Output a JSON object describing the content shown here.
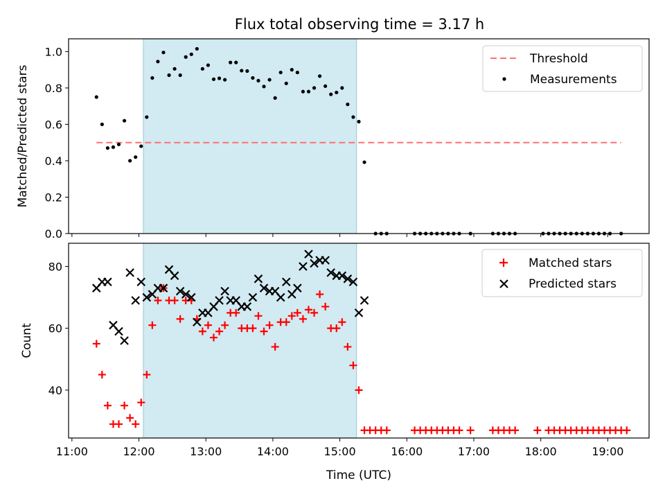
{
  "chart_data": [
    {
      "type": "scatter",
      "title": "Flux total observing time = 3.17 h",
      "xlabel": "",
      "ylabel": "Matched/Predicted stars",
      "xlim": [
        "10:57",
        "19:37"
      ],
      "ylim": [
        0,
        1.07
      ],
      "yticks": [
        "0.0",
        "0.2",
        "0.4",
        "0.6",
        "0.8",
        "1.0"
      ],
      "shaded_interval": [
        "12:04",
        "15:15"
      ],
      "legend": {
        "position": "upper right",
        "entries": [
          "Threshold",
          "Measurements"
        ]
      },
      "threshold": {
        "name": "Threshold",
        "x": [
          "11:22",
          "19:12"
        ],
        "y": 0.5,
        "color": "#ff7070",
        "style": "dashed"
      },
      "series": [
        {
          "name": "Measurements",
          "color": "#000000",
          "marker": "dot",
          "points": [
            [
              "11:22",
              0.75
            ],
            [
              "11:27",
              0.6
            ],
            [
              "11:32",
              0.47
            ],
            [
              "11:37",
              0.475
            ],
            [
              "11:42",
              0.49
            ],
            [
              "11:47",
              0.62
            ],
            [
              "11:52",
              0.4
            ],
            [
              "11:57",
              0.42
            ],
            [
              "12:02",
              0.48
            ],
            [
              "12:07",
              0.64
            ],
            [
              "12:12",
              0.855
            ],
            [
              "12:17",
              0.945
            ],
            [
              "12:22",
              0.995
            ],
            [
              "12:27",
              0.87
            ],
            [
              "12:32",
              0.905
            ],
            [
              "12:37",
              0.87
            ],
            [
              "12:42",
              0.97
            ],
            [
              "12:47",
              0.985
            ],
            [
              "12:52",
              1.015
            ],
            [
              "12:57",
              0.905
            ],
            [
              "13:02",
              0.925
            ],
            [
              "13:07",
              0.848
            ],
            [
              "13:12",
              0.853
            ],
            [
              "13:17",
              0.845
            ],
            [
              "13:22",
              0.94
            ],
            [
              "13:27",
              0.94
            ],
            [
              "13:32",
              0.895
            ],
            [
              "13:37",
              0.893
            ],
            [
              "13:42",
              0.855
            ],
            [
              "13:47",
              0.84
            ],
            [
              "13:52",
              0.808
            ],
            [
              "13:57",
              0.845
            ],
            [
              "14:02",
              0.745
            ],
            [
              "14:07",
              0.885
            ],
            [
              "14:12",
              0.825
            ],
            [
              "14:17",
              0.9
            ],
            [
              "14:22",
              0.885
            ],
            [
              "14:27",
              0.78
            ],
            [
              "14:32",
              0.78
            ],
            [
              "14:37",
              0.8
            ],
            [
              "14:42",
              0.865
            ],
            [
              "14:47",
              0.81
            ],
            [
              "14:52",
              0.765
            ],
            [
              "14:57",
              0.775
            ],
            [
              "15:02",
              0.8
            ],
            [
              "15:07",
              0.71
            ],
            [
              "15:12",
              0.64
            ],
            [
              "15:17",
              0.615
            ],
            [
              "15:22",
              0.392
            ],
            [
              "15:32",
              0.0
            ],
            [
              "15:37",
              0.0
            ],
            [
              "15:42",
              0.0
            ],
            [
              "16:07",
              0.0
            ],
            [
              "16:12",
              0.0
            ],
            [
              "16:17",
              0.0
            ],
            [
              "16:22",
              0.0
            ],
            [
              "16:27",
              0.0
            ],
            [
              "16:32",
              0.0
            ],
            [
              "16:37",
              0.0
            ],
            [
              "16:42",
              0.0
            ],
            [
              "16:47",
              0.0
            ],
            [
              "16:57",
              0.0
            ],
            [
              "17:17",
              0.0
            ],
            [
              "17:22",
              0.0
            ],
            [
              "17:27",
              0.0
            ],
            [
              "17:32",
              0.0
            ],
            [
              "17:37",
              0.0
            ],
            [
              "18:02",
              0.0
            ],
            [
              "18:07",
              0.0
            ],
            [
              "18:12",
              0.0
            ],
            [
              "18:17",
              0.0
            ],
            [
              "18:22",
              0.0
            ],
            [
              "18:27",
              0.0
            ],
            [
              "18:32",
              0.0
            ],
            [
              "18:37",
              0.0
            ],
            [
              "18:42",
              0.0
            ],
            [
              "18:47",
              0.0
            ],
            [
              "18:52",
              0.0
            ],
            [
              "18:57",
              0.0
            ],
            [
              "19:02",
              0.0
            ],
            [
              "19:12",
              0.0
            ]
          ]
        }
      ]
    },
    {
      "type": "scatter",
      "title": "",
      "xlabel": "Time (UTC)",
      "ylabel": "Count",
      "xlim": [
        "10:57",
        "19:37"
      ],
      "ylim": [
        24.5,
        87.5
      ],
      "xticks": [
        "11:00",
        "12:00",
        "13:00",
        "14:00",
        "15:00",
        "16:00",
        "17:00",
        "18:00",
        "19:00"
      ],
      "yticks": [
        "40",
        "60",
        "80"
      ],
      "shaded_interval": [
        "12:04",
        "15:15"
      ],
      "legend": {
        "position": "upper right",
        "entries": [
          "Matched stars",
          "Predicted stars"
        ]
      },
      "series": [
        {
          "name": "Matched stars",
          "color": "#ff0000",
          "marker": "plus",
          "points": [
            [
              "11:22",
              55
            ],
            [
              "11:27",
              45
            ],
            [
              "11:32",
              35
            ],
            [
              "11:37",
              29
            ],
            [
              "11:42",
              29
            ],
            [
              "11:47",
              35
            ],
            [
              "11:52",
              31
            ],
            [
              "11:57",
              29
            ],
            [
              "12:02",
              36
            ],
            [
              "12:07",
              45
            ],
            [
              "12:12",
              61
            ],
            [
              "12:17",
              69
            ],
            [
              "12:22",
              73
            ],
            [
              "12:27",
              69
            ],
            [
              "12:32",
              69
            ],
            [
              "12:37",
              63
            ],
            [
              "12:42",
              69
            ],
            [
              "12:47",
              69
            ],
            [
              "12:52",
              63
            ],
            [
              "12:57",
              59
            ],
            [
              "13:02",
              61
            ],
            [
              "13:07",
              57
            ],
            [
              "13:12",
              59
            ],
            [
              "13:17",
              61
            ],
            [
              "13:22",
              65
            ],
            [
              "13:27",
              65
            ],
            [
              "13:32",
              60
            ],
            [
              "13:37",
              60
            ],
            [
              "13:42",
              60
            ],
            [
              "13:47",
              64
            ],
            [
              "13:52",
              59
            ],
            [
              "13:57",
              61
            ],
            [
              "14:02",
              54
            ],
            [
              "14:07",
              62
            ],
            [
              "14:12",
              62
            ],
            [
              "14:17",
              64
            ],
            [
              "14:22",
              65
            ],
            [
              "14:27",
              63
            ],
            [
              "14:32",
              66
            ],
            [
              "14:37",
              65
            ],
            [
              "14:42",
              71
            ],
            [
              "14:47",
              67
            ],
            [
              "14:52",
              60
            ],
            [
              "14:57",
              60
            ],
            [
              "15:02",
              62
            ],
            [
              "15:07",
              54
            ],
            [
              "15:12",
              48
            ],
            [
              "15:17",
              40
            ],
            [
              "15:22",
              27
            ],
            [
              "15:27",
              27
            ],
            [
              "15:32",
              27
            ],
            [
              "15:37",
              27
            ],
            [
              "15:42",
              27
            ],
            [
              "16:07",
              27
            ],
            [
              "16:12",
              27
            ],
            [
              "16:17",
              27
            ],
            [
              "16:22",
              27
            ],
            [
              "16:27",
              27
            ],
            [
              "16:32",
              27
            ],
            [
              "16:37",
              27
            ],
            [
              "16:42",
              27
            ],
            [
              "16:47",
              27
            ],
            [
              "16:57",
              27
            ],
            [
              "17:17",
              27
            ],
            [
              "17:22",
              27
            ],
            [
              "17:27",
              27
            ],
            [
              "17:32",
              27
            ],
            [
              "17:37",
              27
            ],
            [
              "17:57",
              27
            ],
            [
              "18:07",
              27
            ],
            [
              "18:12",
              27
            ],
            [
              "18:17",
              27
            ],
            [
              "18:22",
              27
            ],
            [
              "18:27",
              27
            ],
            [
              "18:32",
              27
            ],
            [
              "18:37",
              27
            ],
            [
              "18:42",
              27
            ],
            [
              "18:47",
              27
            ],
            [
              "18:52",
              27
            ],
            [
              "18:57",
              27
            ],
            [
              "19:02",
              27
            ],
            [
              "19:07",
              27
            ],
            [
              "19:12",
              27
            ],
            [
              "19:17",
              27
            ]
          ]
        },
        {
          "name": "Predicted stars",
          "color": "#000000",
          "marker": "x",
          "points": [
            [
              "11:22",
              73
            ],
            [
              "11:27",
              75
            ],
            [
              "11:32",
              75
            ],
            [
              "11:37",
              61
            ],
            [
              "11:42",
              59
            ],
            [
              "11:47",
              56
            ],
            [
              "11:52",
              78
            ],
            [
              "11:57",
              69
            ],
            [
              "12:02",
              75
            ],
            [
              "12:07",
              70
            ],
            [
              "12:12",
              71
            ],
            [
              "12:17",
              73
            ],
            [
              "12:22",
              73
            ],
            [
              "12:27",
              79
            ],
            [
              "12:32",
              77
            ],
            [
              "12:37",
              72
            ],
            [
              "12:42",
              71
            ],
            [
              "12:47",
              70
            ],
            [
              "12:52",
              62
            ],
            [
              "12:57",
              65
            ],
            [
              "13:02",
              65
            ],
            [
              "13:07",
              67
            ],
            [
              "13:12",
              69
            ],
            [
              "13:17",
              72
            ],
            [
              "13:22",
              69
            ],
            [
              "13:27",
              69
            ],
            [
              "13:32",
              67
            ],
            [
              "13:37",
              67
            ],
            [
              "13:42",
              70
            ],
            [
              "13:47",
              76
            ],
            [
              "13:52",
              73
            ],
            [
              "13:57",
              72
            ],
            [
              "14:02",
              72
            ],
            [
              "14:07",
              70
            ],
            [
              "14:12",
              75
            ],
            [
              "14:17",
              71
            ],
            [
              "14:22",
              73
            ],
            [
              "14:27",
              80
            ],
            [
              "14:32",
              84
            ],
            [
              "14:37",
              81
            ],
            [
              "14:42",
              82
            ],
            [
              "14:47",
              82
            ],
            [
              "14:52",
              78
            ],
            [
              "14:57",
              77
            ],
            [
              "15:02",
              77
            ],
            [
              "15:07",
              76
            ],
            [
              "15:12",
              75
            ],
            [
              "15:17",
              65
            ],
            [
              "15:22",
              69
            ]
          ]
        }
      ]
    }
  ]
}
